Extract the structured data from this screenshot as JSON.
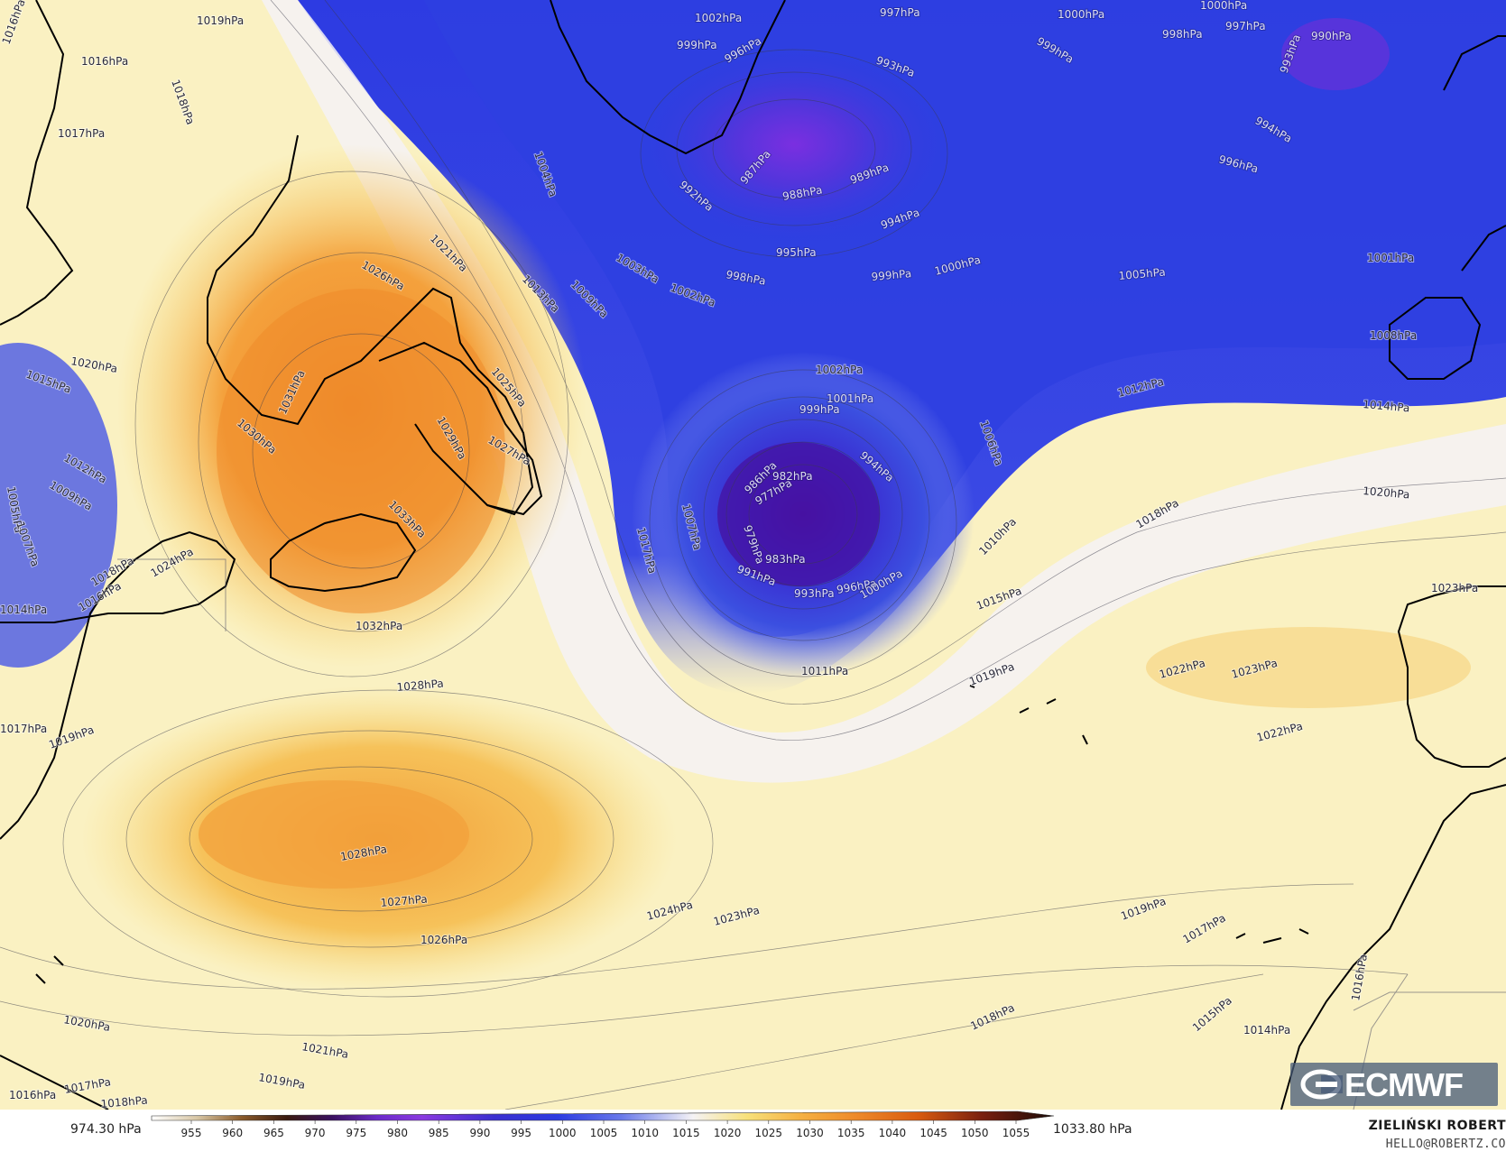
{
  "map": {
    "colors": {
      "very_low": "#5a2bd6",
      "low": "#2c3be0",
      "mid_low": "#6a78ea",
      "neutral": "#f5f3ea",
      "mid_high": "#f7e58a",
      "high": "#f5b042",
      "very_high": "#ee8a2a",
      "coast": "#000000",
      "isobar": "#4a4a5a"
    },
    "isobar_labels": [
      "1019hPa",
      "1016hPa",
      "1017hPa",
      "1018hPa",
      "1016hPa",
      "1021hPa",
      "1013hPa",
      "1009hPa",
      "1004hPa",
      "1003hPa",
      "1002hPa",
      "998hPa",
      "995hPa",
      "999hPa",
      "1000hPa",
      "992hPa",
      "988hPa",
      "989hPa",
      "994hPa",
      "987hPa",
      "993hPa",
      "997hPa",
      "1000hPa",
      "1002hPa",
      "999hPa",
      "996hPa",
      "1000hPa",
      "999hPa",
      "998hPa",
      "997hPa",
      "990hPa",
      "993hPa",
      "994hPa",
      "996hPa",
      "1001hPa",
      "1005hPa",
      "1008hPa",
      "1012hPa",
      "1014hPa",
      "1020hPa",
      "1018hPa",
      "1010hPa",
      "1006hPa",
      "1002hPa",
      "1001hPa",
      "999hPa",
      "994hPa",
      "986hPa",
      "982hPa",
      "977hPa",
      "979hPa",
      "983hPa",
      "991hPa",
      "993hPa",
      "996hPa",
      "1000hPa",
      "1011hPa",
      "1015hPa",
      "1019hPa",
      "1022hPa",
      "1023hPa",
      "1022hPa",
      "1023hPa",
      "1007hPa",
      "1017hPa",
      "1025hPa",
      "1027hPa",
      "1029hPa",
      "1030hPa",
      "1031hPa",
      "1033hPa",
      "1032hPa",
      "1028hPa",
      "1026hPa",
      "1020hPa",
      "1015hPa",
      "1012hPa",
      "1009hPa",
      "1005hPa",
      "1007hPa",
      "1024hPa",
      "1018hPa",
      "1016hPa",
      "1014hPa",
      "1017hPa",
      "1019hPa",
      "1028hPa",
      "1027hPa",
      "1026hPa",
      "1024hPa",
      "1023hPa",
      "1019hPa",
      "1017hPa",
      "1016hPa",
      "1015hPa",
      "1014hPa",
      "1018hPa",
      "1021hPa",
      "1020hPa",
      "1017hPa",
      "1016hPa",
      "1018hPa",
      "1019hPa"
    ]
  },
  "legend": {
    "min_label": "974.30 hPa",
    "max_label": "1033.80 hPa",
    "ticks": [
      "955",
      "960",
      "965",
      "970",
      "975",
      "980",
      "985",
      "990",
      "995",
      "1000",
      "1005",
      "1010",
      "1015",
      "1020",
      "1025",
      "1030",
      "1035",
      "1040",
      "1045",
      "1050",
      "1055"
    ]
  },
  "credit": {
    "name": "ZIELIŃSKI ROBERT",
    "email": "HELLO@ROBERTZ.CO"
  },
  "logo": {
    "text": "ECMWF"
  }
}
